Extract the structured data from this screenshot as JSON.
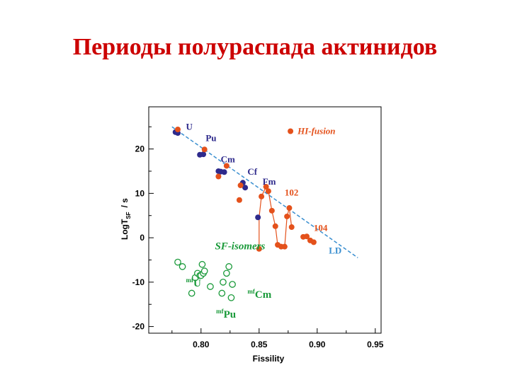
{
  "title": "Периоды полураспада актинидов",
  "chart_data": {
    "type": "scatter",
    "xlabel": "Fissility",
    "ylabel": "LogT",
    "ylabel_sub": "SF",
    "ylabel_unit": "/ s",
    "xlim": [
      0.755,
      0.955
    ],
    "ylim": [
      -21.5,
      29.5
    ],
    "xticks": [
      0.8,
      0.85,
      0.9,
      0.95
    ],
    "xtick_labels": [
      "0.80",
      "0.85",
      "0.90",
      "0.95"
    ],
    "yticks": [
      20,
      10,
      0,
      -10,
      -20
    ],
    "ytick_labels": [
      "20",
      "10",
      "0",
      "-10",
      "-20"
    ],
    "colors": {
      "blue": "#2e2a8c",
      "orange": "#e4511b",
      "green": "#1a9a3a",
      "ld": "#3a8fd0"
    },
    "ld_line": {
      "label": "LD",
      "from": [
        0.775,
        25.0
      ],
      "to": [
        0.935,
        -4.5
      ]
    },
    "legend": {
      "label": "HI-fusion",
      "x": 0.877,
      "y": 24.0
    },
    "series": [
      {
        "kind": "blue",
        "points": [
          [
            0.778,
            23.8
          ],
          [
            0.78,
            23.6
          ],
          [
            0.799,
            18.7
          ],
          [
            0.802,
            18.8
          ],
          [
            0.815,
            15.0
          ],
          [
            0.817,
            14.9
          ],
          [
            0.82,
            14.8
          ],
          [
            0.836,
            12.4
          ],
          [
            0.838,
            11.3
          ],
          [
            0.849,
            4.6
          ]
        ]
      },
      {
        "kind": "orange",
        "points": [
          [
            0.78,
            24.4
          ],
          [
            0.803,
            19.9
          ],
          [
            0.815,
            13.8
          ],
          [
            0.822,
            16.2
          ],
          [
            0.833,
            8.5
          ],
          [
            0.834,
            11.8
          ],
          [
            0.85,
            -2.5
          ],
          [
            0.852,
            9.3
          ],
          [
            0.856,
            11.5
          ],
          [
            0.858,
            10.5
          ],
          [
            0.861,
            6.1
          ],
          [
            0.864,
            2.6
          ],
          [
            0.866,
            -1.6
          ],
          [
            0.869,
            -2.0
          ],
          [
            0.872,
            -2.0
          ],
          [
            0.874,
            4.8
          ],
          [
            0.876,
            6.7
          ],
          [
            0.878,
            2.4
          ],
          [
            0.888,
            0.2
          ],
          [
            0.891,
            0.3
          ],
          [
            0.894,
            -0.6
          ],
          [
            0.897,
            -1.0
          ]
        ]
      },
      {
        "kind": "orange-path",
        "points": [
          [
            0.85,
            -2.5
          ],
          [
            0.85,
            4.6
          ],
          [
            0.852,
            9.3
          ],
          [
            0.856,
            11.5
          ],
          [
            0.858,
            10.5
          ],
          [
            0.861,
            6.1
          ],
          [
            0.864,
            2.6
          ],
          [
            0.866,
            -1.6
          ],
          [
            0.869,
            -2.0
          ],
          [
            0.872,
            -2.0
          ],
          [
            0.874,
            4.8
          ],
          [
            0.876,
            6.7
          ],
          [
            0.878,
            2.4
          ]
        ]
      },
      {
        "kind": "green-open",
        "points": [
          [
            0.78,
            -5.5
          ],
          [
            0.784,
            -6.5
          ],
          [
            0.792,
            -12.5
          ],
          [
            0.795,
            -9.0
          ],
          [
            0.797,
            -8.0
          ],
          [
            0.799,
            -8.5
          ],
          [
            0.8,
            -8.5
          ],
          [
            0.801,
            -6.0
          ],
          [
            0.802,
            -8.0
          ],
          [
            0.803,
            -7.5
          ],
          [
            0.808,
            -11.0
          ],
          [
            0.818,
            -12.5
          ],
          [
            0.819,
            -10.0
          ],
          [
            0.822,
            -8.0
          ],
          [
            0.824,
            -6.5
          ],
          [
            0.826,
            -13.5
          ],
          [
            0.827,
            -10.5
          ]
        ]
      }
    ],
    "labels": [
      {
        "text": "U",
        "x": 0.787,
        "y": 24.3,
        "color": "blue"
      },
      {
        "text": "Pu",
        "x": 0.804,
        "y": 21.8,
        "color": "blue"
      },
      {
        "text": "Cm",
        "x": 0.817,
        "y": 17.0,
        "color": "blue"
      },
      {
        "text": "Cf",
        "x": 0.84,
        "y": 14.2,
        "color": "blue"
      },
      {
        "text": "Fm",
        "x": 0.853,
        "y": 12.0,
        "color": "blue"
      },
      {
        "text": "102",
        "x": 0.872,
        "y": 9.5,
        "color": "orange"
      },
      {
        "text": "104",
        "x": 0.897,
        "y": 1.5,
        "color": "orange"
      },
      {
        "text": "LD",
        "x": 0.91,
        "y": -3.6,
        "color": "ld"
      },
      {
        "text": "SF-isomers",
        "x": 0.812,
        "y": -2.6,
        "color": "green",
        "italic": true
      },
      {
        "text": "U",
        "x": 0.787,
        "y": -11.0,
        "color": "green",
        "sup": "mf"
      },
      {
        "text": "Cm",
        "x": 0.84,
        "y": -13.5,
        "color": "green",
        "sup": "mf"
      },
      {
        "text": "Pu",
        "x": 0.813,
        "y": -18.0,
        "color": "green",
        "sup": "mf"
      }
    ]
  }
}
